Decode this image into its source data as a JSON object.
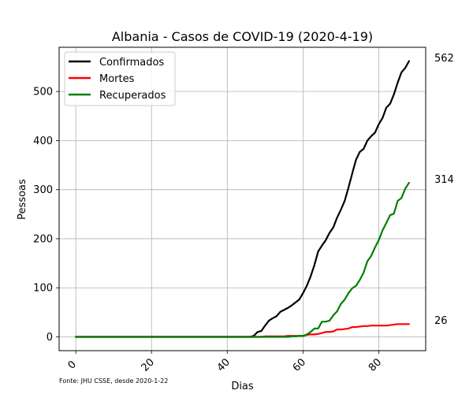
{
  "chart_data": {
    "type": "line",
    "title": "Albania - Casos de COVID-19 (2020-4-19)",
    "xlabel": "Dias",
    "ylabel": "Pessoas",
    "xlim": [
      -4.4,
      92.4
    ],
    "ylim": [
      -28.1,
      590.1
    ],
    "xticks": [
      0,
      20,
      40,
      60,
      80
    ],
    "yticks": [
      0,
      100,
      200,
      300,
      400,
      500
    ],
    "grid": true,
    "legend_position": "upper left",
    "source_note": "Fonte: JHU CSSE, desde 2020-1-22",
    "end_labels": [
      "562",
      "314",
      "26"
    ],
    "series": [
      {
        "name": "Confirmados",
        "color": "#000000",
        "points": [
          [
            0,
            0
          ],
          [
            46,
            0
          ],
          [
            47,
            2
          ],
          [
            48,
            10
          ],
          [
            49,
            12
          ],
          [
            50,
            23
          ],
          [
            51,
            33
          ],
          [
            52,
            38
          ],
          [
            53,
            42
          ],
          [
            54,
            51
          ],
          [
            55,
            55
          ],
          [
            56,
            59
          ],
          [
            57,
            64
          ],
          [
            58,
            70
          ],
          [
            59,
            76
          ],
          [
            60,
            89
          ],
          [
            61,
            104
          ],
          [
            62,
            123
          ],
          [
            63,
            146
          ],
          [
            64,
            174
          ],
          [
            65,
            186
          ],
          [
            66,
            197
          ],
          [
            67,
            212
          ],
          [
            68,
            223
          ],
          [
            69,
            243
          ],
          [
            70,
            259
          ],
          [
            71,
            277
          ],
          [
            72,
            304
          ],
          [
            73,
            333
          ],
          [
            74,
            361
          ],
          [
            75,
            377
          ],
          [
            76,
            383
          ],
          [
            77,
            400
          ],
          [
            78,
            409
          ],
          [
            79,
            416
          ],
          [
            80,
            433
          ],
          [
            81,
            446
          ],
          [
            82,
            467
          ],
          [
            83,
            475
          ],
          [
            84,
            494
          ],
          [
            85,
            518
          ],
          [
            86,
            539
          ],
          [
            87,
            548
          ],
          [
            88,
            562
          ]
        ]
      },
      {
        "name": "Mortes",
        "color": "#ff0000",
        "points": [
          [
            0,
            0
          ],
          [
            49,
            0
          ],
          [
            50,
            1
          ],
          [
            55,
            1
          ],
          [
            56,
            2
          ],
          [
            60,
            2
          ],
          [
            61,
            4
          ],
          [
            62,
            5
          ],
          [
            63,
            5
          ],
          [
            64,
            6
          ],
          [
            65,
            8
          ],
          [
            66,
            10
          ],
          [
            67,
            10
          ],
          [
            68,
            11
          ],
          [
            69,
            15
          ],
          [
            70,
            15
          ],
          [
            71,
            16
          ],
          [
            72,
            17
          ],
          [
            73,
            20
          ],
          [
            74,
            20
          ],
          [
            75,
            21
          ],
          [
            76,
            22
          ],
          [
            77,
            22
          ],
          [
            78,
            23
          ],
          [
            79,
            23
          ],
          [
            80,
            23
          ],
          [
            81,
            23
          ],
          [
            82,
            23
          ],
          [
            83,
            24
          ],
          [
            84,
            25
          ],
          [
            85,
            26
          ],
          [
            86,
            26
          ],
          [
            87,
            26
          ],
          [
            88,
            26
          ]
        ]
      },
      {
        "name": "Recuperados",
        "color": "#008000",
        "points": [
          [
            0,
            0
          ],
          [
            56,
            0
          ],
          [
            57,
            1
          ],
          [
            58,
            1
          ],
          [
            59,
            2
          ],
          [
            60,
            2
          ],
          [
            61,
            5
          ],
          [
            62,
            10
          ],
          [
            63,
            17
          ],
          [
            64,
            17
          ],
          [
            65,
            31
          ],
          [
            66,
            31
          ],
          [
            67,
            33
          ],
          [
            68,
            44
          ],
          [
            69,
            52
          ],
          [
            70,
            67
          ],
          [
            71,
            76
          ],
          [
            72,
            89
          ],
          [
            73,
            99
          ],
          [
            74,
            104
          ],
          [
            75,
            116
          ],
          [
            76,
            131
          ],
          [
            77,
            154
          ],
          [
            78,
            165
          ],
          [
            79,
            182
          ],
          [
            80,
            197
          ],
          [
            81,
            217
          ],
          [
            82,
            232
          ],
          [
            83,
            248
          ],
          [
            84,
            251
          ],
          [
            85,
            277
          ],
          [
            86,
            283
          ],
          [
            87,
            302
          ],
          [
            88,
            314
          ]
        ]
      }
    ]
  }
}
